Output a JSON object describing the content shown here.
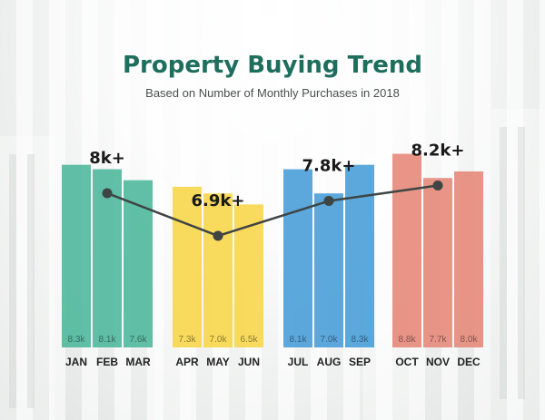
{
  "chart_data": {
    "type": "bar",
    "title": "Property Buying Trend",
    "subtitle": "Based on Number of Monthly Purchases in 2018",
    "categories": [
      "JAN",
      "FEB",
      "MAR",
      "APR",
      "MAY",
      "JUN",
      "JUL",
      "AUG",
      "SEP",
      "OCT",
      "NOV",
      "DEC"
    ],
    "values": [
      8.3,
      8.1,
      7.6,
      7.3,
      7.0,
      6.5,
      8.1,
      7.0,
      8.3,
      8.8,
      7.7,
      8.0
    ],
    "value_labels": [
      "8.3k",
      "8.1k",
      "7.6k",
      "7.3k",
      "7.0k",
      "6.5k",
      "8.1k",
      "7.0k",
      "8.3k",
      "8.8k",
      "7.7k",
      "8.0k"
    ],
    "groups": [
      {
        "months": [
          0,
          1,
          2
        ],
        "color": "#4fb89c"
      },
      {
        "months": [
          3,
          4,
          5
        ],
        "color": "#f7d64a"
      },
      {
        "months": [
          6,
          7,
          8
        ],
        "color": "#4a9fd8"
      },
      {
        "months": [
          9,
          10,
          11
        ],
        "color": "#e6897a"
      }
    ],
    "trend": {
      "type": "line",
      "values": [
        8.0,
        6.9,
        7.8,
        8.2
      ],
      "labels": [
        "8k+",
        "6.9k+",
        "7.8k+",
        "8.2k+"
      ],
      "at_month": [
        1,
        4,
        7,
        10
      ],
      "color": "#3e4543"
    },
    "title_color": "#1e6e5e",
    "ylim": [
      0,
      9.4
    ]
  }
}
